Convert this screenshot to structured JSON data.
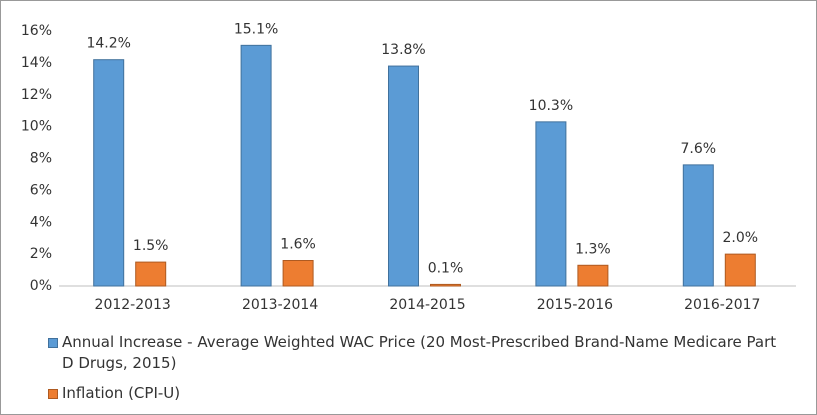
{
  "chart_data": {
    "type": "bar",
    "categories": [
      "2012-2013",
      "2013-2014",
      "2014-2015",
      "2015-2016",
      "2016-2017"
    ],
    "series": [
      {
        "name": "Annual Increase - Average Weighted WAC Price (20 Most-Prescribed Brand-Name Medicare Part D Drugs, 2015)",
        "color": "#5b9bd5",
        "values": [
          14.2,
          15.1,
          13.8,
          10.3,
          7.6
        ],
        "value_labels": [
          "14.2%",
          "15.1%",
          "13.8%",
          "10.3%",
          "7.6%"
        ]
      },
      {
        "name": "Inflation (CPI-U)",
        "color": "#ed7d31",
        "values": [
          1.5,
          1.6,
          0.1,
          1.3,
          2.0
        ],
        "value_labels": [
          "1.5%",
          "1.6%",
          "0.1%",
          "1.3%",
          "2.0%"
        ]
      }
    ],
    "ylim": [
      0,
      16
    ],
    "yticks": [
      {
        "value": 0,
        "label": "0%"
      },
      {
        "value": 2,
        "label": "2%"
      },
      {
        "value": 4,
        "label": "4%"
      },
      {
        "value": 6,
        "label": "6%"
      },
      {
        "value": 8,
        "label": "8%"
      },
      {
        "value": 10,
        "label": "10%"
      },
      {
        "value": 12,
        "label": "12%"
      },
      {
        "value": 14,
        "label": "14%"
      },
      {
        "value": 16,
        "label": "16%"
      }
    ],
    "legend": "bottom"
  }
}
